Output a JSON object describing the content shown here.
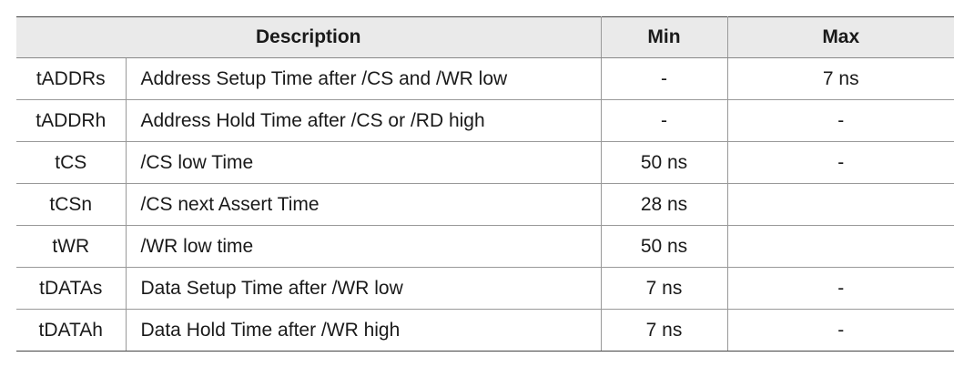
{
  "header": {
    "description": "Description",
    "min": "Min",
    "max": "Max"
  },
  "rows": [
    {
      "symbol": "tADDRs",
      "description": "Address Setup Time after /CS and /WR low",
      "min": "-",
      "max": "7 ns"
    },
    {
      "symbol": "tADDRh",
      "description": "Address Hold Time after /CS or /RD high",
      "min": "-",
      "max": "-"
    },
    {
      "symbol": "tCS",
      "description": "/CS low Time",
      "min": "50 ns",
      "max": "-"
    },
    {
      "symbol": "tCSn",
      "description": "/CS next Assert Time",
      "min": "28 ns",
      "max": ""
    },
    {
      "symbol": "tWR",
      "description": "/WR low time",
      "min": "50 ns",
      "max": ""
    },
    {
      "symbol": "tDATAs",
      "description": "Data Setup Time after /WR low",
      "min": "7 ns",
      "max": "-"
    },
    {
      "symbol": "tDATAh",
      "description": "Data Hold Time after /WR high",
      "min": "7 ns",
      "max": "-"
    }
  ]
}
